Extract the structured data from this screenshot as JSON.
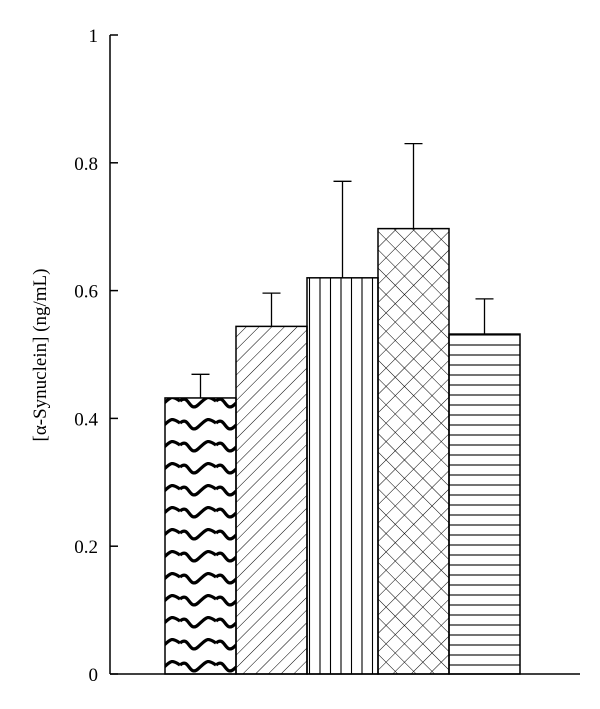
{
  "chart_data": {
    "type": "bar",
    "title": "",
    "xlabel": "",
    "ylabel": "[α-Synuclein] (ng/mL)",
    "ylim": [
      0,
      1
    ],
    "yticks": [
      {
        "value": 0,
        "label": "0"
      },
      {
        "value": 0.2,
        "label": "0.2"
      },
      {
        "value": 0.4,
        "label": "0.4"
      },
      {
        "value": 0.6,
        "label": "0.6"
      },
      {
        "value": 0.8,
        "label": "0.8"
      },
      {
        "value": 1,
        "label": "1"
      }
    ],
    "grid": false,
    "legend": "none",
    "bars": [
      {
        "value": 0.432,
        "error": 0.037,
        "pattern": "waves"
      },
      {
        "value": 0.544,
        "error": 0.052,
        "pattern": "diagonal-hatch"
      },
      {
        "value": 0.62,
        "error": 0.151,
        "pattern": "vertical-lines"
      },
      {
        "value": 0.697,
        "error": 0.133,
        "pattern": "crosshatch"
      },
      {
        "value": 0.532,
        "error": 0.055,
        "pattern": "horizontal-lines"
      }
    ]
  }
}
